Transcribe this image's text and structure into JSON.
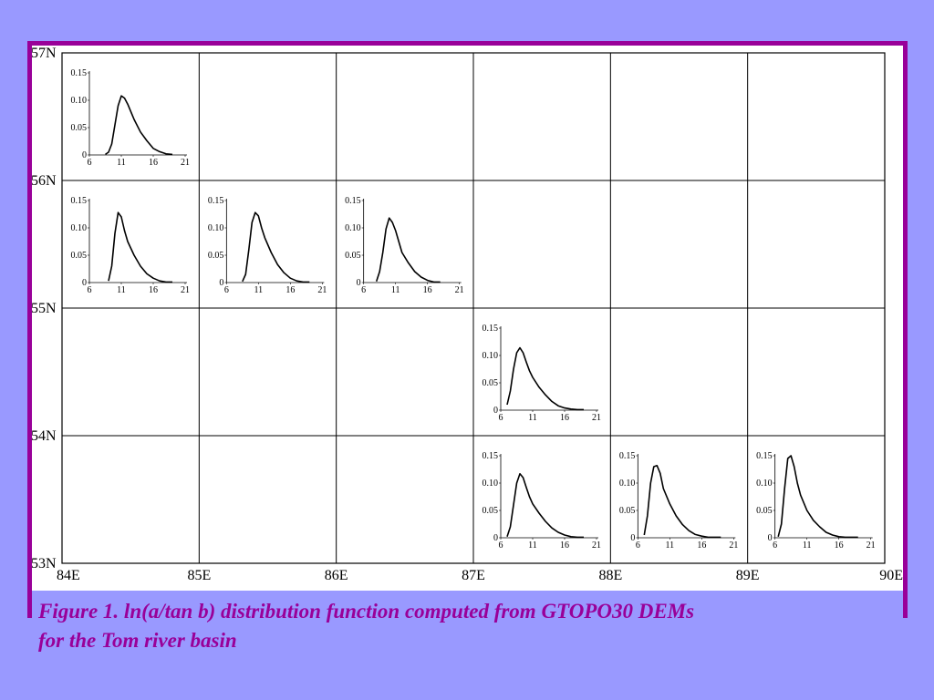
{
  "colors": {
    "background": "#9999ff",
    "frame": "#990099",
    "panel": "#ffffff",
    "grid": "#000000",
    "caption": "#990099"
  },
  "caption": {
    "line1": "Figure 1.  ln(a/tan b)  distribution function computed from GTOPO30 DEMs",
    "line2": "for the Tom river basin"
  },
  "chart_data": {
    "type": "line",
    "title": "",
    "grid": {
      "x_labels": [
        "84E",
        "85E",
        "86E",
        "87E",
        "88E",
        "89E",
        "90E"
      ],
      "y_labels": [
        "57N",
        "56N",
        "55N",
        "54N",
        "53N"
      ]
    },
    "inset_axes": {
      "xlim": [
        6,
        21
      ],
      "x_ticks": [
        "6",
        "11",
        "16",
        "21"
      ],
      "ylim": [
        0,
        0.15
      ],
      "y_ticks": [
        "0",
        "0.05",
        "0.10",
        "0.15"
      ]
    },
    "cells": [
      {
        "name": "84E-85E / 56N-57N",
        "col": 0,
        "row": 0,
        "x": [
          8.5,
          9,
          9.5,
          10,
          10.5,
          11,
          11.5,
          12,
          13,
          14,
          15,
          16,
          17,
          18,
          19
        ],
        "y": [
          0.001,
          0.005,
          0.02,
          0.055,
          0.09,
          0.108,
          0.104,
          0.093,
          0.065,
          0.042,
          0.026,
          0.012,
          0.006,
          0.002,
          0.001
        ]
      },
      {
        "name": "84E-85E / 55N-56N",
        "col": 0,
        "row": 1,
        "x": [
          9,
          9.5,
          10,
          10.5,
          11,
          11.5,
          12,
          13,
          14,
          15,
          16,
          17,
          18,
          19
        ],
        "y": [
          0.003,
          0.03,
          0.09,
          0.128,
          0.12,
          0.095,
          0.075,
          0.05,
          0.03,
          0.016,
          0.008,
          0.003,
          0.001,
          0.001
        ]
      },
      {
        "name": "85E-86E / 55N-56N",
        "col": 1,
        "row": 1,
        "x": [
          8.5,
          9,
          9.5,
          10,
          10.5,
          11,
          11.5,
          12,
          13,
          14,
          15,
          16,
          17,
          18,
          19
        ],
        "y": [
          0.002,
          0.015,
          0.06,
          0.11,
          0.128,
          0.122,
          0.1,
          0.082,
          0.055,
          0.033,
          0.018,
          0.008,
          0.003,
          0.001,
          0.001
        ]
      },
      {
        "name": "86E-87E / 55N-56N",
        "col": 2,
        "row": 1,
        "x": [
          8,
          8.5,
          9,
          9.5,
          10,
          10.5,
          11,
          11.5,
          12,
          13,
          14,
          15,
          16,
          17,
          18
        ],
        "y": [
          0.002,
          0.02,
          0.055,
          0.098,
          0.118,
          0.11,
          0.095,
          0.075,
          0.055,
          0.036,
          0.02,
          0.01,
          0.004,
          0.001,
          0.001
        ]
      },
      {
        "name": "87E-88E / 54N-55N",
        "col": 3,
        "row": 2,
        "x": [
          7,
          7.5,
          8,
          8.5,
          9,
          9.5,
          10,
          10.5,
          11,
          12,
          13,
          14,
          15,
          16,
          17,
          18,
          19
        ],
        "y": [
          0.01,
          0.035,
          0.075,
          0.105,
          0.114,
          0.105,
          0.088,
          0.072,
          0.06,
          0.042,
          0.028,
          0.016,
          0.008,
          0.004,
          0.002,
          0.001,
          0.001
        ]
      },
      {
        "name": "87E-88E / 53N-54N",
        "col": 3,
        "row": 3,
        "x": [
          7,
          7.5,
          8,
          8.5,
          9,
          9.5,
          10,
          10.5,
          11,
          12,
          13,
          14,
          15,
          16,
          17,
          18,
          19
        ],
        "y": [
          0.002,
          0.02,
          0.06,
          0.1,
          0.117,
          0.11,
          0.092,
          0.075,
          0.062,
          0.045,
          0.03,
          0.018,
          0.01,
          0.005,
          0.002,
          0.001,
          0.001
        ]
      },
      {
        "name": "88E-89E / 53N-54N",
        "col": 4,
        "row": 3,
        "x": [
          7,
          7.5,
          8,
          8.5,
          9,
          9.5,
          10,
          11,
          12,
          13,
          14,
          15,
          16,
          17,
          18,
          19
        ],
        "y": [
          0.005,
          0.04,
          0.1,
          0.13,
          0.132,
          0.118,
          0.09,
          0.062,
          0.04,
          0.024,
          0.013,
          0.006,
          0.003,
          0.001,
          0.001,
          0.001
        ]
      },
      {
        "name": "89E-90E / 53N-54N",
        "col": 5,
        "row": 3,
        "x": [
          6.5,
          7,
          7.5,
          8,
          8.5,
          9,
          9.5,
          10,
          11,
          12,
          13,
          14,
          15,
          16,
          17,
          18,
          19
        ],
        "y": [
          0.002,
          0.025,
          0.09,
          0.145,
          0.15,
          0.13,
          0.1,
          0.078,
          0.05,
          0.032,
          0.02,
          0.01,
          0.005,
          0.002,
          0.001,
          0.001,
          0.001
        ]
      }
    ]
  }
}
